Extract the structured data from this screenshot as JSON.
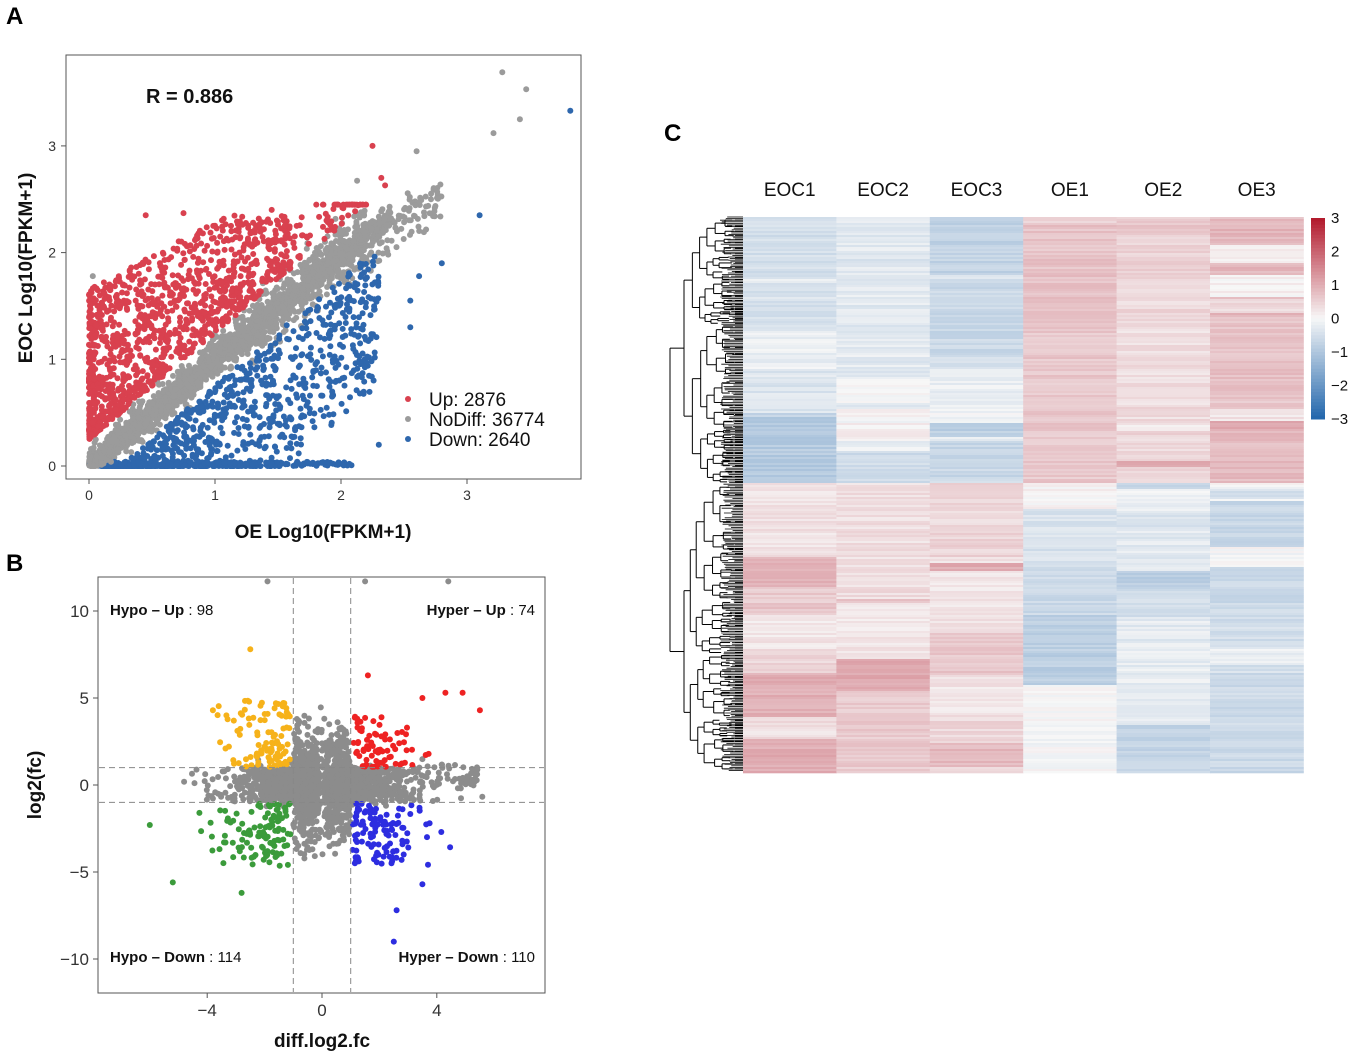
{
  "colors": {
    "up": "#d9414f",
    "nodiff": "#9b9b9b",
    "down": "#2e67ad",
    "hyper_up": "#ee2222",
    "hypo_up": "#f6b21a",
    "hypo_down": "#3b9b3b",
    "hyper_down": "#2d2de0",
    "b_grey": "#8c8c8c",
    "heat_low": "#2166ac",
    "heat_mid": "#f7f7f7",
    "heat_high": "#b2182b"
  },
  "icons": {
    "legend_markers": "filled-circle"
  },
  "panels": {
    "a": "A",
    "b": "B",
    "c": "C"
  },
  "chart_data": [
    {
      "panel": "A",
      "type": "scatter",
      "xlabel": "OE Log10(FPKM+1)",
      "ylabel": "EOC Log10(FPKM+1)",
      "annotation": "R = 0.886",
      "xlim": [
        -0.12,
        3.85
      ],
      "ylim": [
        -0.12,
        3.7
      ],
      "xticks": [
        0,
        1,
        2,
        3
      ],
      "yticks": [
        0,
        1,
        2,
        3
      ],
      "series": [
        {
          "name": "Up",
          "count": 2876,
          "legend": "Up: 2876"
        },
        {
          "name": "NoDiff",
          "count": 36774,
          "legend": "NoDiff: 36774"
        },
        {
          "name": "Down",
          "count": 2640,
          "legend": "Down: 2640"
        }
      ],
      "highlight_points": [
        {
          "x": 3.28,
          "y": 3.69,
          "group": "NoDiff"
        },
        {
          "x": 3.47,
          "y": 3.53,
          "group": "NoDiff"
        },
        {
          "x": 3.82,
          "y": 3.33,
          "group": "Down"
        },
        {
          "x": 3.42,
          "y": 3.25,
          "group": "NoDiff"
        },
        {
          "x": 3.21,
          "y": 3.12,
          "group": "NoDiff"
        },
        {
          "x": 3.1,
          "y": 2.35,
          "group": "Down"
        },
        {
          "x": 2.6,
          "y": 2.95,
          "group": "NoDiff"
        },
        {
          "x": 2.25,
          "y": 3.0,
          "group": "Up"
        },
        {
          "x": 2.32,
          "y": 2.7,
          "group": "Up"
        },
        {
          "x": 2.35,
          "y": 2.63,
          "group": "Up"
        },
        {
          "x": 2.8,
          "y": 1.9,
          "group": "Down"
        },
        {
          "x": 2.62,
          "y": 1.78,
          "group": "Down"
        },
        {
          "x": 2.55,
          "y": 1.55,
          "group": "Down"
        },
        {
          "x": 2.55,
          "y": 1.3,
          "group": "Down"
        },
        {
          "x": 2.3,
          "y": 0.2,
          "group": "Down"
        },
        {
          "x": 1.45,
          "y": 2.4,
          "group": "Up"
        },
        {
          "x": 0.75,
          "y": 2.37,
          "group": "Up"
        },
        {
          "x": 0.45,
          "y": 2.35,
          "group": "Up"
        },
        {
          "x": 0.03,
          "y": 1.78,
          "group": "NoDiff"
        }
      ]
    },
    {
      "panel": "B",
      "type": "scatter",
      "xlabel": "diff.log2.fc",
      "ylabel": "log2(fc)",
      "xlim": [
        -7.8,
        7.8
      ],
      "ylim": [
        -11.8,
        11.8
      ],
      "xticks": [
        -4,
        0,
        4
      ],
      "yticks": [
        10,
        5,
        0,
        -5,
        -10
      ],
      "thresholds": {
        "x": [
          -1,
          1
        ],
        "y": [
          -1,
          1
        ]
      },
      "quadrants": [
        {
          "name": "Hypo",
          "dir": "Up",
          "count": 98
        },
        {
          "name": "Hyper",
          "dir": "Up",
          "count": 74
        },
        {
          "name": "Hypo",
          "dir": "Down",
          "count": 114
        },
        {
          "name": "Hyper",
          "dir": "Down",
          "count": 110
        }
      ],
      "highlight_points": [
        {
          "x": -2.5,
          "y": 7.8,
          "group": "Hypo-Up"
        },
        {
          "x": -3.8,
          "y": 4.3,
          "group": "Hypo-Up"
        },
        {
          "x": 5.5,
          "y": 4.3,
          "group": "Hyper-Up"
        },
        {
          "x": 4.9,
          "y": 5.3,
          "group": "Hyper-Up"
        },
        {
          "x": 4.3,
          "y": 5.3,
          "group": "Hyper-Up"
        },
        {
          "x": 3.5,
          "y": 5.0,
          "group": "Hyper-Up"
        },
        {
          "x": 1.6,
          "y": 6.3,
          "group": "Hyper-Up"
        },
        {
          "x": -6.0,
          "y": -2.3,
          "group": "Hypo-Down"
        },
        {
          "x": -5.2,
          "y": -5.6,
          "group": "Hypo-Down"
        },
        {
          "x": -2.8,
          "y": -6.2,
          "group": "Hypo-Down"
        },
        {
          "x": 2.5,
          "y": -9.0,
          "group": "Hyper-Down"
        },
        {
          "x": 2.6,
          "y": -7.2,
          "group": "Hyper-Down"
        },
        {
          "x": 3.5,
          "y": -5.7,
          "group": "Hyper-Down"
        },
        {
          "x": 4.4,
          "y": 12.0,
          "group": "Other"
        },
        {
          "x": 1.5,
          "y": 12.0,
          "group": "Other"
        },
        {
          "x": -1.9,
          "y": 12.0,
          "group": "Other"
        }
      ]
    },
    {
      "panel": "C",
      "type": "heatmap",
      "columns": [
        "EOC1",
        "EOC2",
        "EOC3",
        "OE1",
        "OE2",
        "OE3"
      ],
      "colorbar": {
        "min": -3,
        "max": 3,
        "ticks": [
          "3",
          "2",
          "1",
          "0",
          "−1",
          "−2",
          "−3"
        ]
      },
      "row_clusters": [
        {
          "rows": "upper",
          "EOC1": -0.5,
          "EOC2": -0.3,
          "EOC3": -0.4,
          "OE1": 0.5,
          "OE2": 0.6,
          "OE3": 0.5
        },
        {
          "rows": "lower",
          "EOC1": 0.6,
          "EOC2": 0.6,
          "EOC3": 0.7,
          "OE1": -0.4,
          "OE2": -0.5,
          "OE3": -0.3
        }
      ]
    }
  ]
}
